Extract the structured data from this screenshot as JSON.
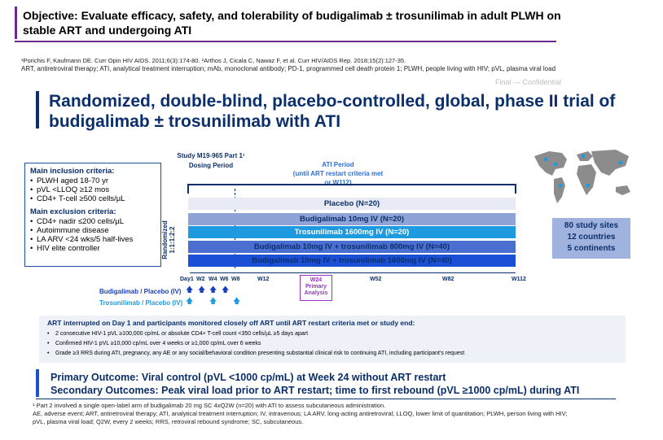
{
  "objective": "Objective: Evaluate efficacy, safety, and tolerability of budigalimab ± trosunilimab in adult PLWH on stable ART and undergoing ATI",
  "references": {
    "line1": "¹Porichis F, Kaufmann DE. Curr Opin HIV AIDS. 2011;6(3):174-80. ²Arthos J, Cicala C, Nawaz F, et al. Curr HIV/AIDS Rep. 2018;15(2):127-35.",
    "line2": "ART, antiretroviral therapy; ATI, analytical treatment interruption; mAb, monoclonal antibody; PD-1, programmed cell death protein 1; PLWH, people living with HIV; pVL, plasma viral load"
  },
  "ghost_text": "Final — Confidential",
  "title": "Randomized, double-blind, placebo-controlled, global, phase II trial of budigalimab ± trosunilimab with ATI",
  "criteria": {
    "inclusion_heading": "Main inclusion criteria:",
    "inclusion": [
      "PLWH aged 18-70 yr",
      "pVL <LLOQ ≥12 mos",
      "CD4+ T-cell ≥500 cells/µL"
    ],
    "exclusion_heading": "Main exclusion criteria:",
    "exclusion": [
      "CD4+ nadir ≤200 cells/µL",
      "Autoimmune disease",
      "LA ARV <24 wks/5 half-lives",
      "HIV elite controller"
    ]
  },
  "randomized_label": "Randomized 1:1:1:2:2",
  "study_label": "Study M19-965 Part 1¹",
  "dosing_label": "Dosing Period",
  "ati_label": "ATI Period",
  "ati_sublabel": "(until ART restart criteria met or W112)",
  "arms": [
    "Placebo (N=20)",
    "Budigalimab 10mg IV (N=20)",
    "Trosunilimab 1600mg IV (N=20)",
    "Budigalimab 10mg IV + trosunilimab 800mg IV (N=40)",
    "Budigalimab 10mg IV + trosunilimab 1600mg IV (N=40)"
  ],
  "timeline": {
    "ticks": [
      "Day1",
      "W2",
      "W4",
      "W6",
      "W8",
      "W12",
      "W52",
      "W82",
      "W112"
    ],
    "w24": "W24",
    "w24_sub": "Primary Analysis"
  },
  "dosing_rows": {
    "budigalimab": "Budigalimab / Placebo (IV)",
    "trosunilimab": "Trosunilimab / Placebo (IV)"
  },
  "stats": [
    "80 study sites",
    "12 countries",
    "5 continents"
  ],
  "art": {
    "heading": "ART interrupted on Day 1 and participants monitored closely off ART until ART restart criteria met or study end:",
    "items": [
      "2 consecutive HIV-1 pVL ≥100,000 cp/mL or absolute CD4+ T-cell count <350 cells/µL ≥5 days apart",
      "Confirmed HIV-1 pVL ≥10,000 cp/mL over 4 weeks or ≥1,000 cp/mL over 6 weeks",
      "Grade ≥3 RRS during ATI, pregnancy, any AE or any social/behavioral condition presenting substantial clinical risk to continuing ATI, including participant’s request"
    ]
  },
  "outcomes": {
    "primary": "Primary Outcome: Viral control (pVL <1000 cp/mL) at Week 24 without ART restart",
    "secondary": "Secondary Outcomes: Peak viral load prior to ART restart; time to first rebound (pVL ≥1000 cp/mL) during ATI"
  },
  "footnotes": {
    "line1": "¹ Part 2 involved a single open-label arm of budigalimab 20 mg SC 4xQ2W (n=20) with ATI to assess subcutaneous administration.",
    "line2": "AE, adverse event; ART, antiretroviral therapy; ATI, analytical treatment interruption; IV, intravenous; LA ARV, long-acting antiretroviral; LLOQ, lower limit of quantitation; PLWH, person living with HIV;",
    "line3": "pVL, plasma viral load; Q2W, every 2 weeks; RRS, retroviral rebound syndrome; SC, subcutaneous."
  },
  "colors": {
    "navy": "#0b2f6b",
    "purple": "#6a2c91",
    "accent_blue": "#1a4fd6",
    "cyan": "#1e9ae0",
    "w24_purple": "#9b30c9"
  }
}
